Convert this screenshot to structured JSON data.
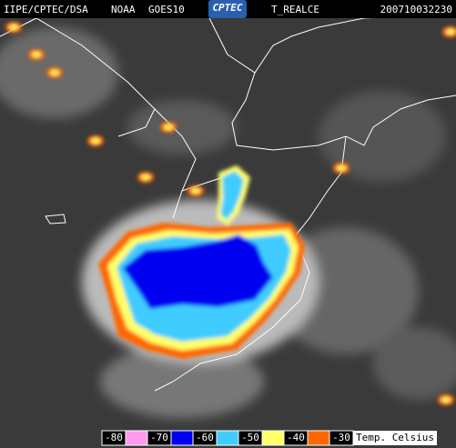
{
  "header": {
    "agency": "IIPE/CPTEC/DSA",
    "satellite": "NOAA",
    "sensor": "GOES10",
    "logo": "CPTEC",
    "product": "T_REALCE",
    "timestamp": "200710032230"
  },
  "legend": {
    "items": [
      {
        "label": "-80",
        "color": "#ff99ee"
      },
      {
        "label": "-70",
        "color": "#0000f0"
      },
      {
        "label": "-60",
        "color": "#40ccff"
      },
      {
        "label": "-50",
        "color": "#ffff66"
      },
      {
        "label": "-40",
        "color": "#ff6600"
      },
      {
        "label": "-30"
      }
    ],
    "unit": "Temp. Celsius"
  }
}
